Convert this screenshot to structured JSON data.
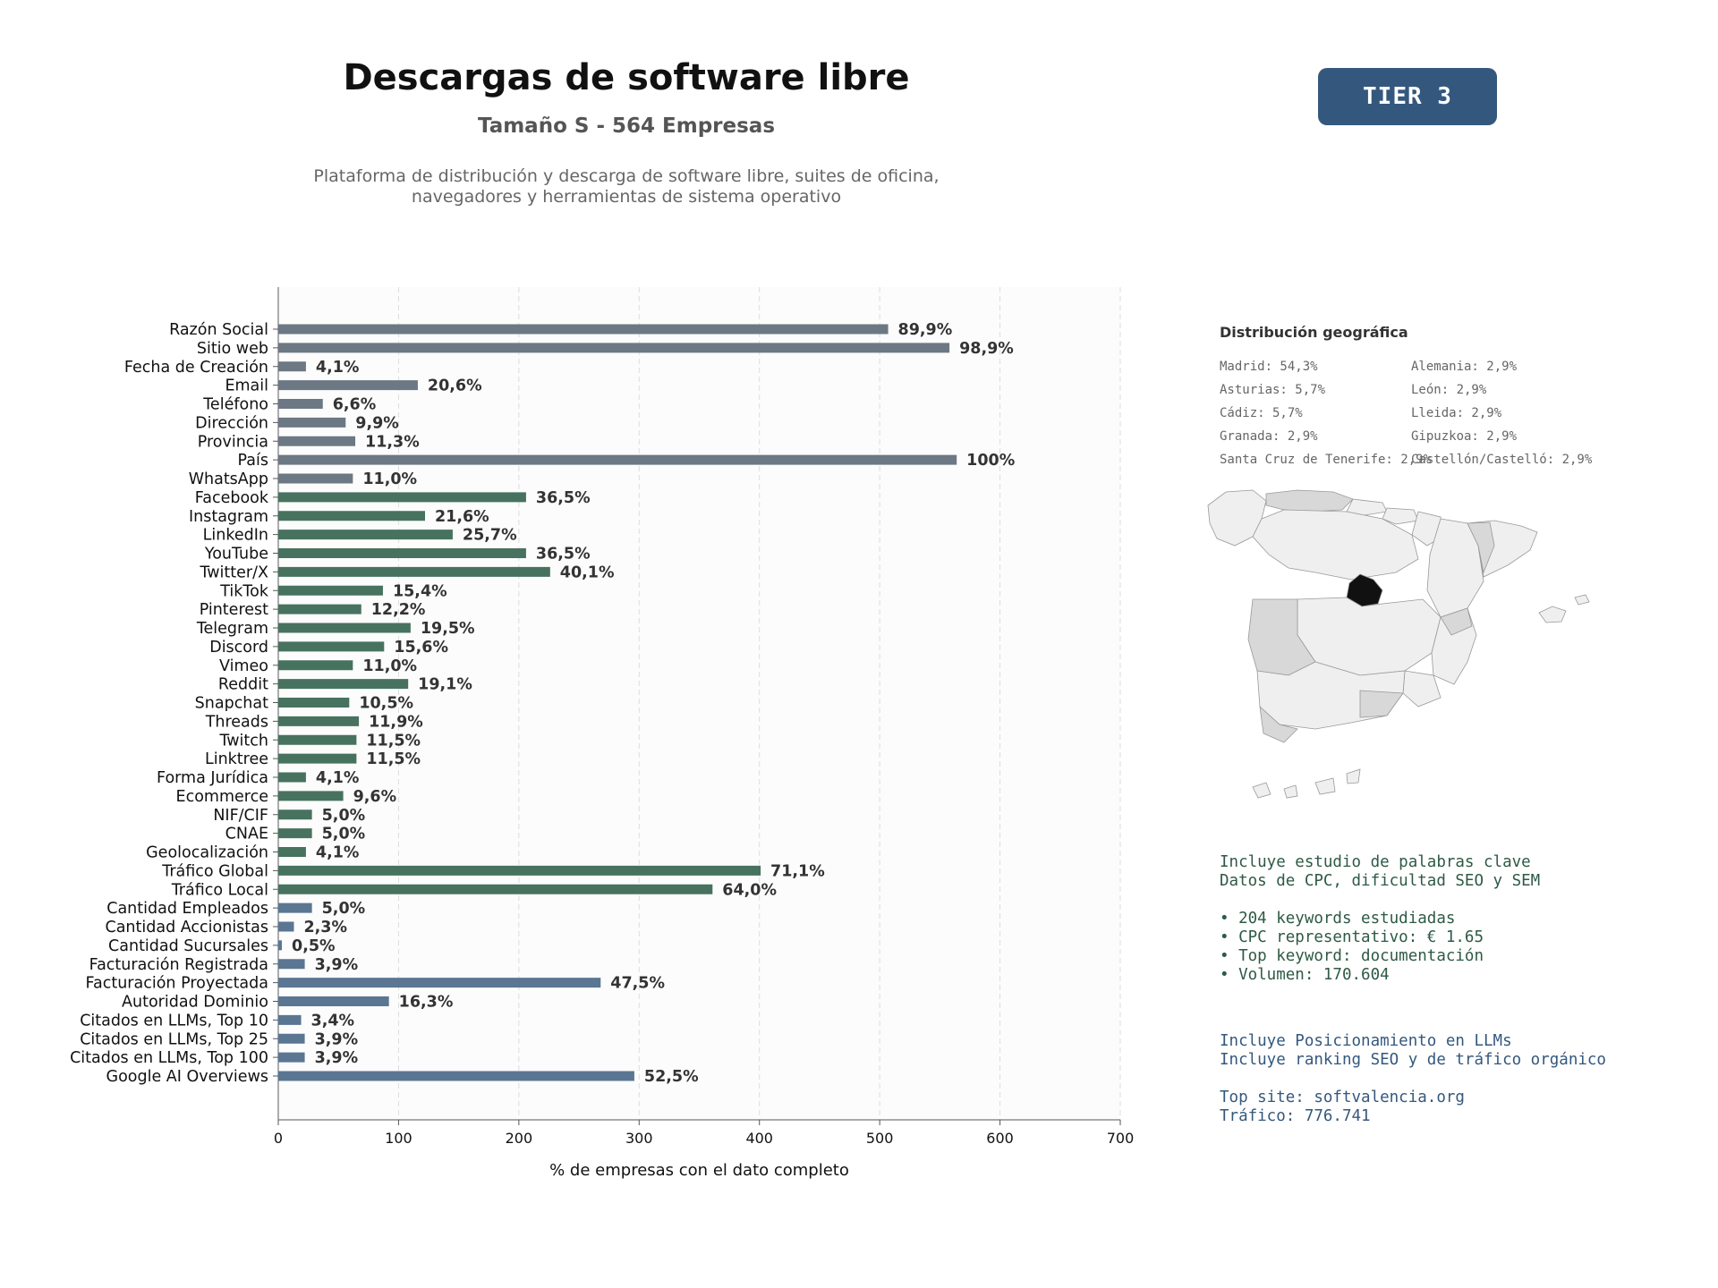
{
  "header": {
    "title": "Descargas de software libre",
    "subtitle": "Tamaño S - 564 Empresas",
    "description": "Plataforma de distribución y descarga de software libre, suites de oficina, navegadores y herramientas de sistema operativo",
    "tier": "TIER 3"
  },
  "colors": {
    "gray": "#6c7883",
    "green": "#47725f",
    "blue": "#5a7693",
    "badge": "#34587d"
  },
  "chart_data": {
    "type": "bar",
    "orientation": "horizontal",
    "title": "",
    "xlabel": "% de empresas con el dato completo",
    "xlim": [
      0,
      700
    ],
    "xticks": [
      0,
      100,
      200,
      300,
      400,
      500,
      600,
      700
    ],
    "grid": "vertical dashed",
    "categories": [
      "Razón Social",
      "Sitio web",
      "Fecha de Creación",
      "Email",
      "Teléfono",
      "Dirección",
      "Provincia",
      "País",
      "WhatsApp",
      "Facebook",
      "Instagram",
      "LinkedIn",
      "YouTube",
      "Twitter/X",
      "TikTok",
      "Pinterest",
      "Telegram",
      "Discord",
      "Vimeo",
      "Reddit",
      "Snapchat",
      "Threads",
      "Twitch",
      "Linktree",
      "Forma Jurídica",
      "Ecommerce",
      "NIF/CIF",
      "CNAE",
      "Geolocalización",
      "Tráfico Global",
      "Tráfico Local",
      "Cantidad Empleados",
      "Cantidad Accionistas",
      "Cantidad Sucursales",
      "Facturación Registrada",
      "Facturación Proyectada",
      "Autoridad Dominio",
      "Citados en LLMs, Top 10",
      "Citados en LLMs, Top 25",
      "Citados en LLMs, Top 100",
      "Google AI Overviews"
    ],
    "values": [
      507,
      558,
      23,
      116,
      37,
      56,
      64,
      564,
      62,
      206,
      122,
      145,
      206,
      226,
      87,
      69,
      110,
      88,
      62,
      108,
      59,
      67,
      65,
      65,
      23,
      54,
      28,
      28,
      23,
      401,
      361,
      28,
      13,
      3,
      22,
      268,
      92,
      19,
      22,
      22,
      296
    ],
    "labels": [
      "89,9%",
      "98,9%",
      "4,1%",
      "20,6%",
      "6,6%",
      "9,9%",
      "11,3%",
      "100%",
      "11,0%",
      "36,5%",
      "21,6%",
      "25,7%",
      "36,5%",
      "40,1%",
      "15,4%",
      "12,2%",
      "19,5%",
      "15,6%",
      "11,0%",
      "19,1%",
      "10,5%",
      "11,9%",
      "11,5%",
      "11,5%",
      "4,1%",
      "9,6%",
      "5,0%",
      "5,0%",
      "4,1%",
      "71,1%",
      "64,0%",
      "5,0%",
      "2,3%",
      "0,5%",
      "3,9%",
      "47,5%",
      "16,3%",
      "3,4%",
      "3,9%",
      "3,9%",
      "52,5%"
    ],
    "groups": [
      "gray",
      "gray",
      "gray",
      "gray",
      "gray",
      "gray",
      "gray",
      "gray",
      "gray",
      "green",
      "green",
      "green",
      "green",
      "green",
      "green",
      "green",
      "green",
      "green",
      "green",
      "green",
      "green",
      "green",
      "green",
      "green",
      "green",
      "green",
      "green",
      "green",
      "green",
      "green",
      "green",
      "blue",
      "blue",
      "blue",
      "blue",
      "blue",
      "blue",
      "blue",
      "blue",
      "blue",
      "blue"
    ]
  },
  "geo": {
    "title": "Distribución geográfica",
    "left": [
      "Madrid: 54,3%",
      "Asturias: 5,7%",
      "Cádiz: 5,7%",
      "Granada: 2,9%",
      "Santa Cruz de Tenerife: 2,9%"
    ],
    "right": [
      "Alemania: 2,9%",
      "León: 2,9%",
      "Lleida: 2,9%",
      "Gipuzkoa: 2,9%",
      "Castellón/Castelló: 2,9%"
    ]
  },
  "keywords": {
    "line1": "Incluye estudio de palabras clave",
    "line2": "Datos de CPC, dificultad SEO y SEM",
    "b1": "• 204 keywords estudiadas",
    "b2": "• CPC representativo: € 1.65",
    "b3": "• Top keyword: documentación",
    "b4": "• Volumen: 170.604"
  },
  "llm": {
    "line1": "Incluye Posicionamiento en LLMs",
    "line2": "Incluye ranking SEO y de tráfico orgánico",
    "line3": "Top site: softvalencia.org",
    "line4": "Tráfico: 776.741"
  }
}
